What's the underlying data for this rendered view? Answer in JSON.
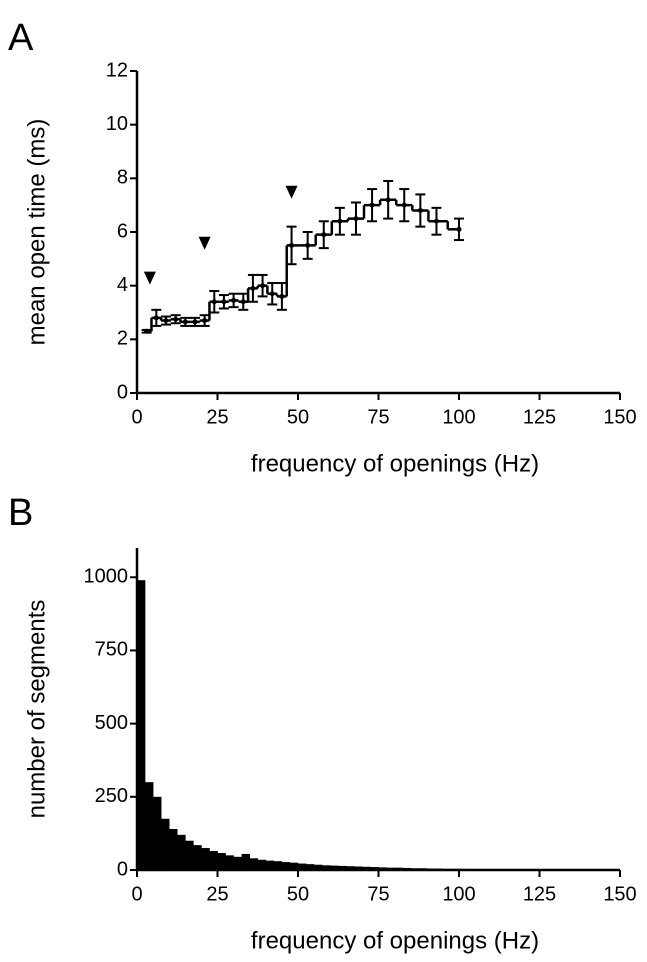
{
  "chart_data": [
    {
      "type": "line",
      "panel_label": "A",
      "x_label": "frequency of openings (Hz)",
      "y_label": "mean open time (ms)",
      "x": [
        3,
        6,
        9,
        12,
        15,
        18,
        21,
        24,
        27,
        30,
        33,
        36,
        39,
        42,
        45,
        48,
        53,
        58,
        63,
        68,
        73,
        78,
        83,
        88,
        93,
        100
      ],
      "values": [
        2.3,
        2.8,
        2.7,
        2.75,
        2.65,
        2.65,
        2.7,
        3.4,
        3.4,
        3.45,
        3.4,
        3.9,
        4.0,
        3.7,
        3.6,
        5.5,
        5.5,
        5.9,
        6.4,
        6.5,
        7.0,
        7.2,
        7.0,
        6.8,
        6.4,
        6.1
      ],
      "errors": [
        0.05,
        0.3,
        0.15,
        0.15,
        0.15,
        0.15,
        0.2,
        0.4,
        0.25,
        0.25,
        0.3,
        0.5,
        0.4,
        0.4,
        0.5,
        0.7,
        0.5,
        0.5,
        0.5,
        0.6,
        0.6,
        0.7,
        0.6,
        0.6,
        0.5,
        0.4
      ],
      "markers": {
        "x": [
          4,
          21,
          48
        ],
        "y": [
          4.3,
          5.6,
          7.5
        ]
      },
      "color": "#000000",
      "xlim": [
        0,
        150
      ],
      "xticks": [
        0,
        25,
        50,
        75,
        100,
        125,
        150
      ],
      "ylim": [
        0,
        12
      ],
      "yticks": [
        0,
        2,
        4,
        6,
        8,
        10,
        12
      ]
    },
    {
      "type": "histogram",
      "panel_label": "B",
      "x_label": "frequency of openings (Hz)",
      "y_label": "number of segments",
      "bins": [
        0,
        2.5,
        5,
        7.5,
        10,
        12.5,
        15,
        17.5,
        20,
        22.5,
        25,
        27.5,
        30,
        32.5,
        35,
        37.5,
        40,
        42.5,
        45,
        47.5,
        50,
        52.5,
        55,
        57.5,
        60,
        62.5,
        65,
        67.5,
        70,
        72.5,
        75,
        77.5,
        80,
        82.5,
        85,
        87.5,
        90,
        92.5,
        95,
        97.5,
        100,
        102.5,
        105,
        107.5,
        110,
        112.5,
        115,
        117.5,
        120,
        122.5,
        125,
        127.5,
        130,
        132.5,
        135,
        137.5,
        140,
        142.5,
        145,
        147.5,
        150
      ],
      "values": [
        990,
        300,
        250,
        175,
        140,
        120,
        100,
        85,
        75,
        65,
        58,
        50,
        45,
        55,
        40,
        35,
        32,
        30,
        27,
        25,
        22,
        20,
        18,
        16,
        15,
        14,
        13,
        12,
        11,
        10,
        9,
        8,
        8,
        7,
        6,
        6,
        5,
        5,
        4,
        4,
        4,
        3,
        3,
        3,
        2,
        2,
        2,
        2,
        1,
        1,
        1,
        1,
        1,
        0,
        0,
        0,
        0,
        0,
        0,
        0
      ],
      "color": "#000000",
      "xlim": [
        0,
        150
      ],
      "xticks": [
        0,
        25,
        50,
        75,
        100,
        125,
        150
      ],
      "ylim": [
        0,
        1100
      ],
      "yticks": [
        0,
        250,
        500,
        750,
        1000
      ]
    }
  ]
}
